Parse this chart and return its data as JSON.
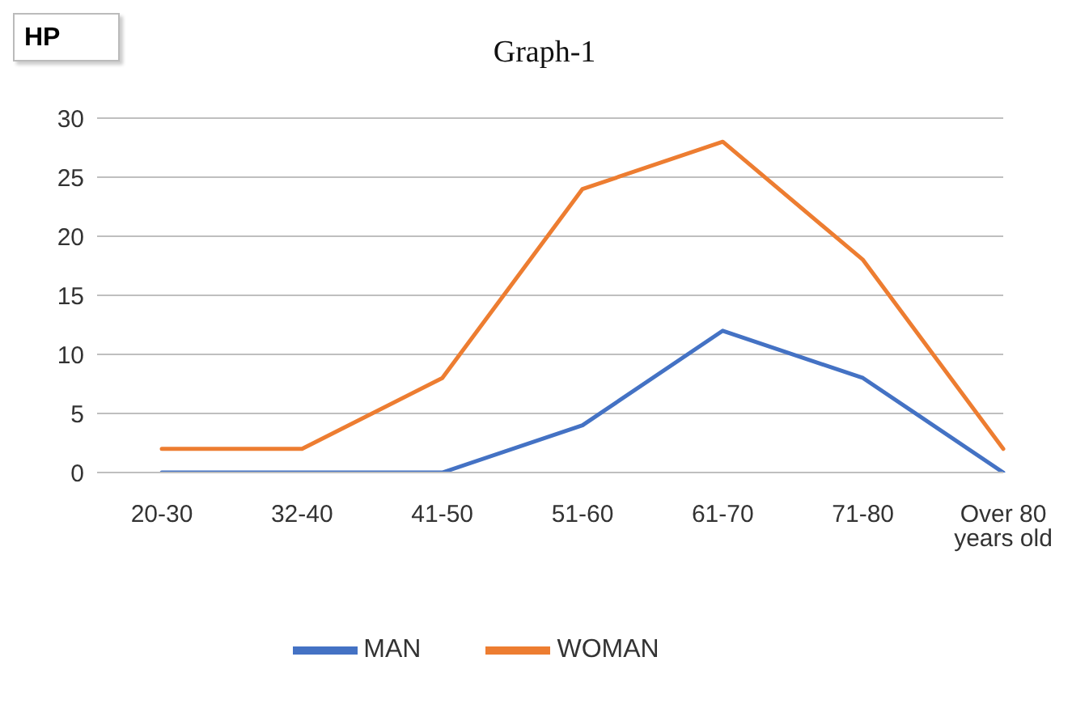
{
  "chart_data": {
    "type": "line",
    "title": "Graph-1",
    "ylabel": "HP",
    "categories": [
      "20-30",
      "32-40",
      "41-50",
      "51-60",
      "61-70",
      "71-80",
      "Over 80 years old"
    ],
    "series": [
      {
        "name": "MAN",
        "color": "#4472c4",
        "values": [
          0,
          0,
          0,
          4,
          12,
          8,
          0
        ]
      },
      {
        "name": "WOMAN",
        "color": "#ed7d31",
        "values": [
          2,
          2,
          8,
          24,
          28,
          18,
          2
        ]
      }
    ],
    "ylim": [
      0,
      30
    ],
    "yticks": [
      0,
      5,
      10,
      15,
      20,
      25,
      30
    ],
    "grid": "y",
    "legend": "bottom",
    "marker": "none",
    "line_style": "solid"
  }
}
